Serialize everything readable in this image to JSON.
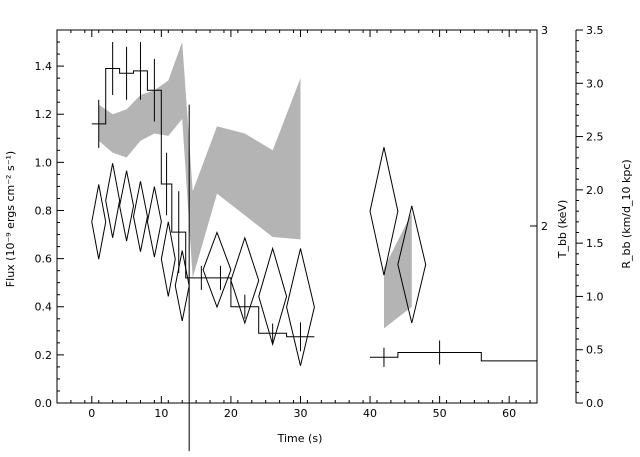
{
  "chart_data": {
    "type": "scatter",
    "title": "",
    "xlabel": "Time (s)",
    "ylabel_left": "Flux (10⁻⁹ ergs cm⁻² s⁻¹)",
    "ylabel_right_inner": "T_bb (keV)",
    "ylabel_right_outer": "R_bb (km/d_10 kpc)",
    "xlim": [
      -5,
      64
    ],
    "ylim": [
      0,
      1.55
    ],
    "x_ticks": [
      0,
      10,
      20,
      30,
      40,
      50,
      60
    ],
    "y_ticks": [
      0.0,
      0.2,
      0.4,
      0.6,
      0.8,
      1.0,
      1.2,
      1.4
    ],
    "x_tick_labels": [
      "0",
      "10",
      "20",
      "30",
      "40",
      "50",
      "60"
    ],
    "y_tick_labels": [
      "0.0",
      "0.2",
      "0.4",
      "0.6",
      "0.8",
      "1.0",
      "1.2",
      "1.4"
    ],
    "temperature_axis": {
      "scale": "log",
      "labels": [
        {
          "value": 3,
          "text": "3"
        },
        {
          "value": 2,
          "text": "2"
        }
      ]
    },
    "radius_axis": {
      "range": [
        0,
        3.5
      ],
      "ticks": [
        0.0,
        0.5,
        1.0,
        1.5,
        2.0,
        2.5,
        3.0,
        3.5
      ],
      "tick_labels": [
        "0.0",
        "0.5",
        "1.0",
        "1.5",
        "2.0",
        "2.5",
        "3.0",
        "3.5"
      ]
    },
    "series": [
      {
        "kind": "step_with_errors",
        "bins": [
          {
            "x0": 0,
            "x1": 2,
            "y": 1.16,
            "err": 0.1
          },
          {
            "x0": 2,
            "x1": 4,
            "y": 1.39,
            "err": 0.11
          },
          {
            "x0": 4,
            "x1": 6,
            "y": 1.37,
            "err": 0.11
          },
          {
            "x0": 6,
            "x1": 8,
            "y": 1.38,
            "err": 0.12
          },
          {
            "x0": 8,
            "x1": 10,
            "y": 1.3,
            "err": 0.13
          },
          {
            "x0": 10,
            "x1": 11.5,
            "y": 0.91,
            "err": 0.13
          },
          {
            "x0": 11.5,
            "x1": 13.5,
            "y": 0.71,
            "err": 0.17
          },
          {
            "x0": 13.5,
            "x1": 14.5,
            "y": 0.52,
            "err": 0.72
          },
          {
            "x0": 14.5,
            "x1": 17,
            "y": 0.52,
            "err": 0.05
          },
          {
            "x0": 17,
            "x1": 20,
            "y": 0.52,
            "err": 0.05
          },
          {
            "x0": 20,
            "x1": 24,
            "y": 0.4,
            "err": 0.05
          },
          {
            "x0": 24,
            "x1": 28,
            "y": 0.29,
            "err": 0.04
          },
          {
            "x0": 28,
            "x1": 32,
            "y": 0.275,
            "err": 0.06
          },
          {
            "x0": 40,
            "x1": 44,
            "y": 0.19,
            "err": 0.04
          },
          {
            "x0": 44,
            "x1": 56,
            "y": 0.21,
            "err": 0.05
          },
          {
            "x0": 56,
            "x1": 64,
            "y": 0.175,
            "err": 0
          }
        ]
      },
      {
        "kind": "temperature_band",
        "segments": [
          {
            "points": [
              {
                "t": 1,
                "low": 1.09,
                "high": 1.24
              },
              {
                "t": 3,
                "low": 1.04,
                "high": 1.2
              },
              {
                "t": 5,
                "low": 1.02,
                "high": 1.22
              },
              {
                "t": 7,
                "low": 1.09,
                "high": 1.28
              },
              {
                "t": 9,
                "low": 1.12,
                "high": 1.3
              },
              {
                "t": 11,
                "low": 1.11,
                "high": 1.34
              },
              {
                "t": 13,
                "low": 1.18,
                "high": 1.5
              },
              {
                "t": 14.5,
                "low": 0.52,
                "high": 0.88
              },
              {
                "t": 18,
                "low": 0.87,
                "high": 1.15
              },
              {
                "t": 22,
                "low": 0.78,
                "high": 1.12
              },
              {
                "t": 26,
                "low": 0.69,
                "high": 1.05
              },
              {
                "t": 30,
                "low": 0.68,
                "high": 1.35
              }
            ]
          },
          {
            "points": [
              {
                "t": 42,
                "low": 0.31,
                "high": 0.56
              },
              {
                "t": 46,
                "low": 0.4,
                "high": 0.79
              }
            ]
          }
        ]
      },
      {
        "kind": "radius_diamonds",
        "points": [
          {
            "t": 1,
            "r": 1.7,
            "halfwidth": 1,
            "halfheight": 0.35
          },
          {
            "t": 3,
            "r": 1.9,
            "halfwidth": 1,
            "halfheight": 0.35
          },
          {
            "t": 5,
            "r": 1.85,
            "halfwidth": 1,
            "halfheight": 0.33
          },
          {
            "t": 7,
            "r": 1.75,
            "halfwidth": 1,
            "halfheight": 0.33
          },
          {
            "t": 9,
            "r": 1.7,
            "halfwidth": 1,
            "halfheight": 0.33
          },
          {
            "t": 11,
            "r": 1.35,
            "halfwidth": 1,
            "halfheight": 0.35
          },
          {
            "t": 13,
            "r": 1.1,
            "halfwidth": 1,
            "halfheight": 0.33
          },
          {
            "t": 18,
            "r": 1.25,
            "halfwidth": 2,
            "halfheight": 0.35
          },
          {
            "t": 22,
            "r": 1.15,
            "halfwidth": 2,
            "halfheight": 0.4
          },
          {
            "t": 26,
            "r": 1.0,
            "halfwidth": 2,
            "halfheight": 0.45
          },
          {
            "t": 30,
            "r": 0.9,
            "halfwidth": 2,
            "halfheight": 0.55
          },
          {
            "t": 42,
            "r": 1.8,
            "halfwidth": 2,
            "halfheight": 0.6
          },
          {
            "t": 46,
            "r": 1.3,
            "halfwidth": 2,
            "halfheight": 0.55
          }
        ]
      }
    ]
  }
}
